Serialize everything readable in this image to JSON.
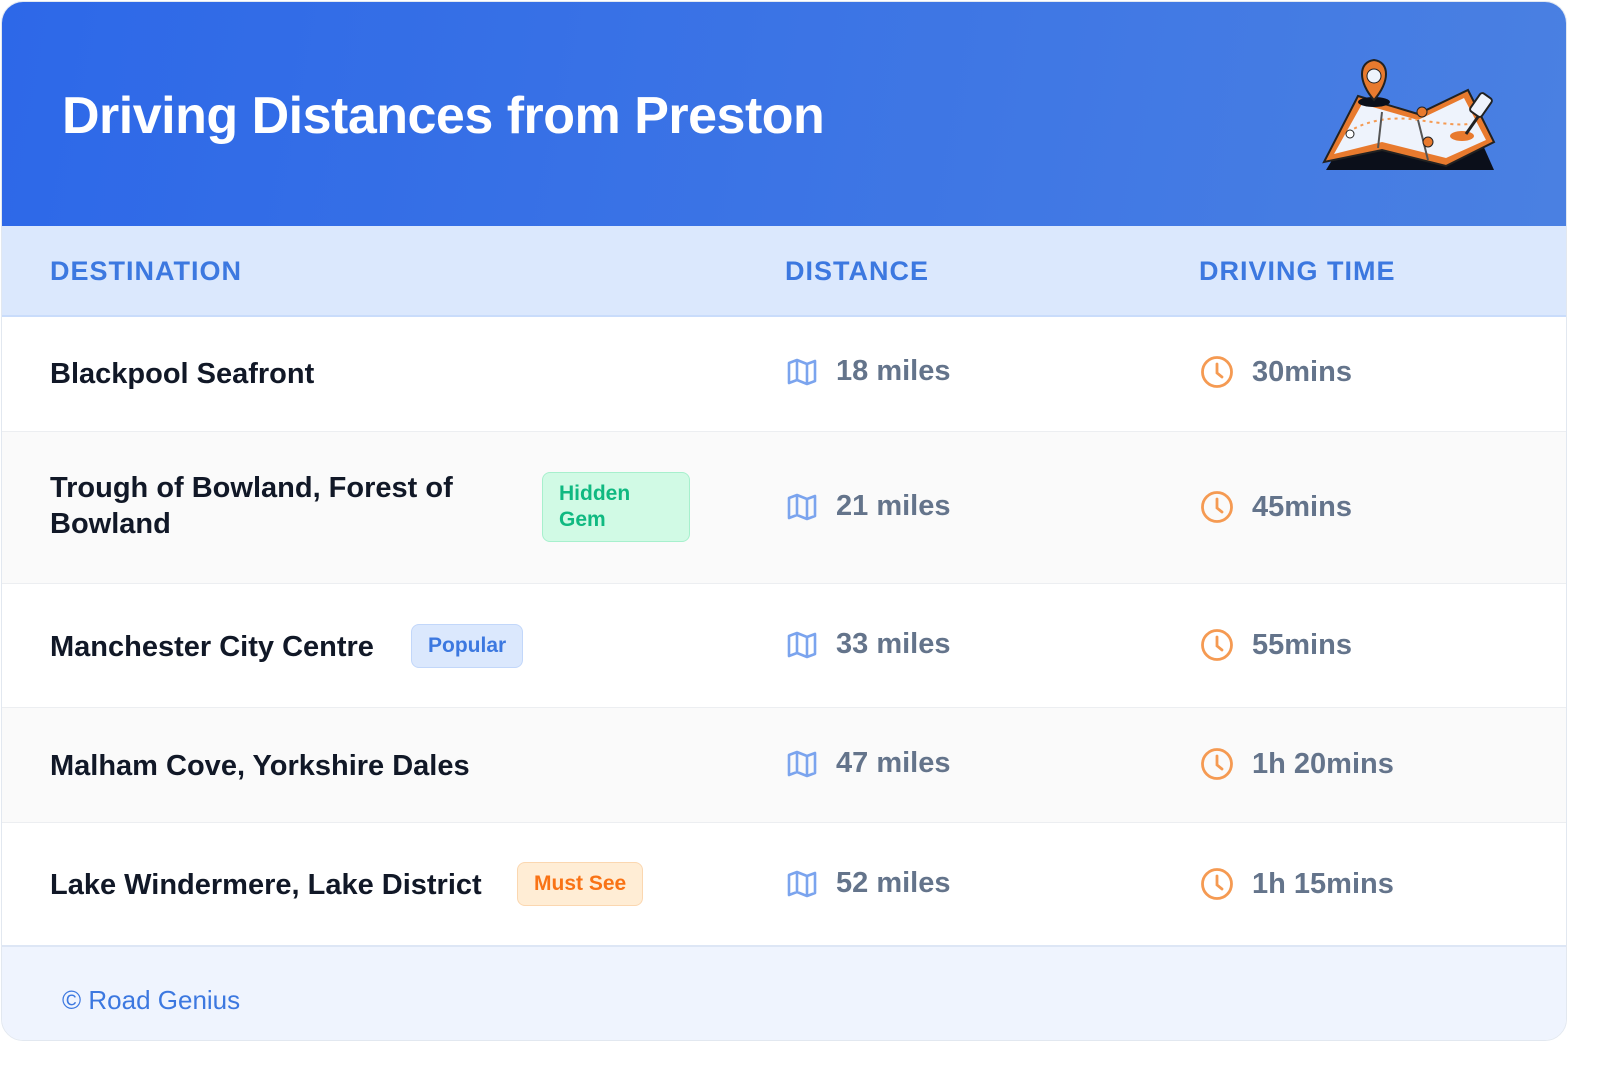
{
  "header": {
    "title": "Driving Distances from Preston",
    "illustration": "map-with-pins-illustration"
  },
  "table": {
    "columns": [
      "DESTINATION",
      "DISTANCE",
      "DRIVING TIME"
    ],
    "rows": [
      {
        "destination": "Blackpool Seafront",
        "badge": null,
        "distance": "18 miles",
        "time": "30mins"
      },
      {
        "destination_line1": "Trough of Bowland, Forest of",
        "destination_line2": "Bowland",
        "badge_line1": "Hidden",
        "badge_line2": "Gem",
        "distance": "21 miles",
        "time": "45mins"
      },
      {
        "destination": "Manchester City Centre",
        "badge": "Popular",
        "distance": "33 miles",
        "time": "55mins"
      },
      {
        "destination": "Malham Cove, Yorkshire Dales",
        "badge": null,
        "distance": "47 miles",
        "time": "1h 20mins"
      },
      {
        "destination": "Lake Windermere, Lake District",
        "badge": "Must See",
        "distance": "52 miles",
        "time": "1h 15mins"
      }
    ]
  },
  "footer": {
    "text": "© Road Genius"
  },
  "colors": {
    "header": "#2d68e8",
    "accent": "#3c78e0",
    "clock": "#f59a52",
    "map_icon": "#7ba4ee"
  }
}
